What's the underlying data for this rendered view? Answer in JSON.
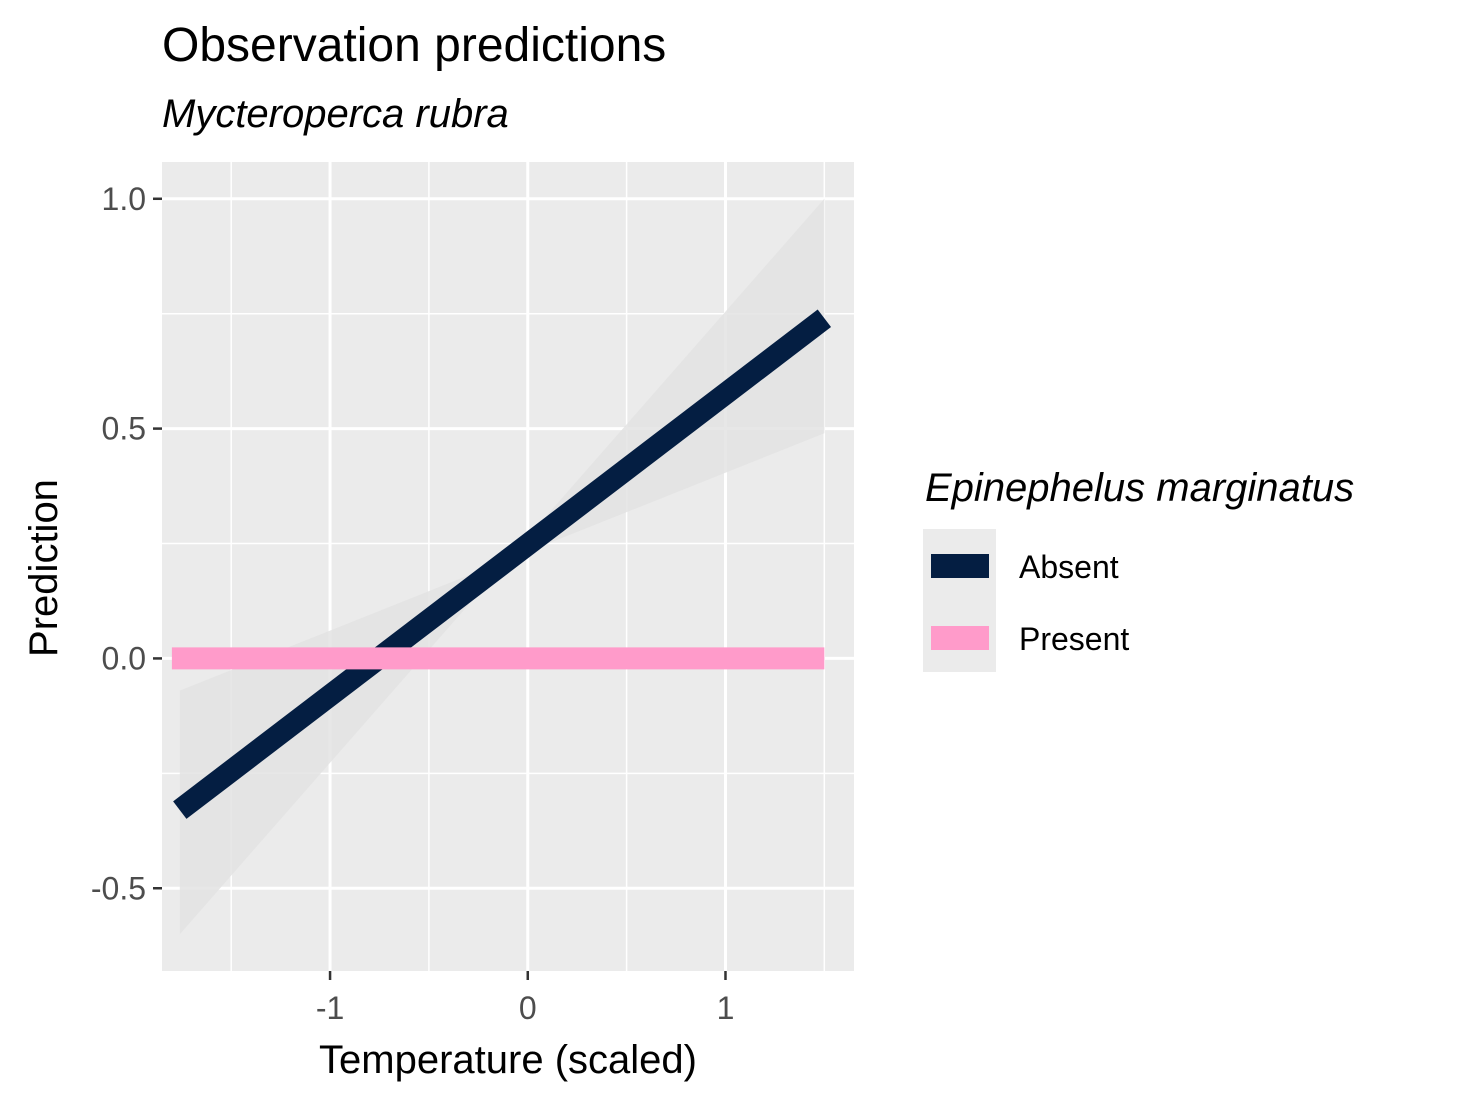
{
  "chart_data": {
    "type": "line",
    "title": "Observation predictions",
    "subtitle": "Mycteroperca rubra",
    "xlabel": "Temperature (scaled)",
    "ylabel": "Prediction",
    "xlim": [
      -1.85,
      1.65
    ],
    "ylim": [
      -0.68,
      1.08
    ],
    "x_ticks": [
      -1,
      0,
      1
    ],
    "x_tick_labels": [
      "-1",
      "0",
      "1"
    ],
    "y_ticks": [
      -0.5,
      0.0,
      0.5,
      1.0
    ],
    "y_tick_labels": [
      "-0.5",
      "0.0",
      "0.5",
      "1.0"
    ],
    "grid": true,
    "legend": {
      "title": "Epinephelus marginatus",
      "position": "right",
      "entries": [
        "Absent",
        "Present"
      ]
    },
    "series": [
      {
        "name": "Absent",
        "color": "#041e42",
        "x": [
          -1.76,
          1.5
        ],
        "y": [
          -0.33,
          0.74
        ],
        "ribbon_lower": [
          -0.07,
          0.49
        ],
        "ribbon_upper": [
          -0.6,
          1.0
        ]
      },
      {
        "name": "Present",
        "color": "#ff9bca",
        "x": [
          -1.8,
          1.5
        ],
        "y": [
          0.0,
          0.0
        ],
        "ribbon_lower": [
          0.0,
          0.0
        ],
        "ribbon_upper": [
          0.0,
          0.0
        ]
      }
    ],
    "panel_color": "#ebebeb",
    "ribbon_color": "#e3e3e3"
  }
}
